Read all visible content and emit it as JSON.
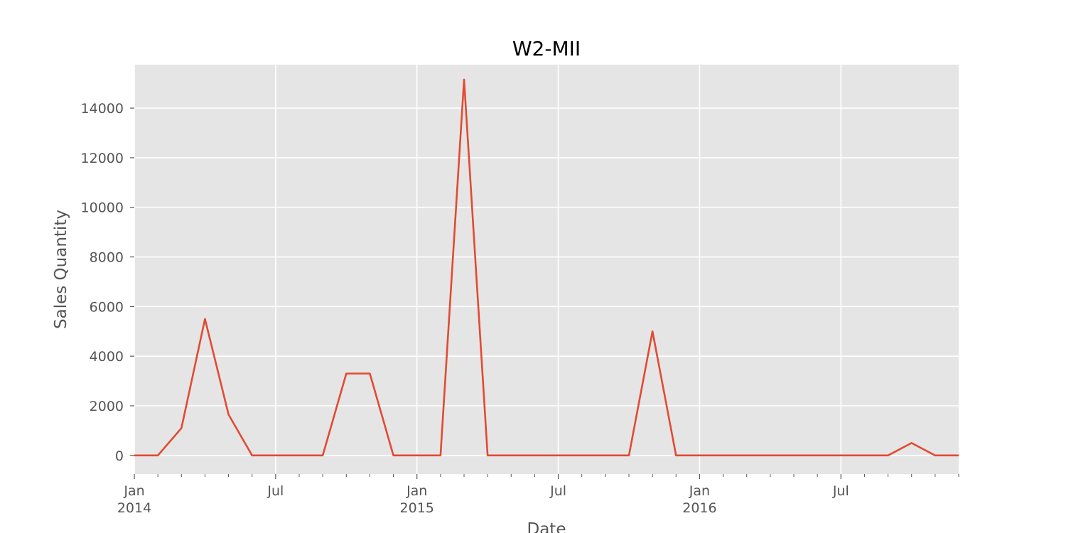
{
  "chart_data": {
    "type": "line",
    "title": "W2-MII",
    "xlabel": "Date",
    "ylabel": "Sales Quantity",
    "x": [
      "2014-01",
      "2014-02",
      "2014-03",
      "2014-04",
      "2014-05",
      "2014-06",
      "2014-07",
      "2014-08",
      "2014-09",
      "2014-10",
      "2014-11",
      "2014-12",
      "2015-01",
      "2015-02",
      "2015-03",
      "2015-04",
      "2015-05",
      "2015-06",
      "2015-07",
      "2015-08",
      "2015-09",
      "2015-10",
      "2015-11",
      "2015-12",
      "2016-01",
      "2016-02",
      "2016-03",
      "2016-04",
      "2016-05",
      "2016-06",
      "2016-07",
      "2016-08",
      "2016-09",
      "2016-10",
      "2016-11",
      "2016-12"
    ],
    "series": [
      {
        "values": [
          0,
          0,
          1100,
          5500,
          1650,
          0,
          0,
          0,
          0,
          3300,
          3300,
          0,
          0,
          0,
          15150,
          0,
          0,
          0,
          0,
          0,
          0,
          0,
          5000,
          0,
          0,
          0,
          0,
          0,
          0,
          0,
          0,
          0,
          0,
          500,
          0,
          0
        ],
        "color": "#E24A33"
      }
    ],
    "xlim": [
      "2014-01",
      "2016-12"
    ],
    "ylim": [
      -750,
      15750
    ],
    "yticks": [
      0,
      2000,
      4000,
      6000,
      8000,
      10000,
      12000,
      14000
    ],
    "ytick_labels": [
      "0",
      "2000",
      "4000",
      "6000",
      "8000",
      "10000",
      "12000",
      "14000"
    ],
    "xticks_major": [
      {
        "date": "2014-01",
        "label": "Jan",
        "sublabel": "2014"
      },
      {
        "date": "2014-07",
        "label": "Jul",
        "sublabel": ""
      },
      {
        "date": "2015-01",
        "label": "Jan",
        "sublabel": "2015"
      },
      {
        "date": "2015-07",
        "label": "Jul",
        "sublabel": ""
      },
      {
        "date": "2016-01",
        "label": "Jan",
        "sublabel": "2016"
      },
      {
        "date": "2016-07",
        "label": "Jul",
        "sublabel": ""
      }
    ],
    "grid": true,
    "style": {
      "background": "#E5E5E5",
      "grid_color": "#FFFFFF",
      "tick_label_color": "#555555"
    }
  }
}
